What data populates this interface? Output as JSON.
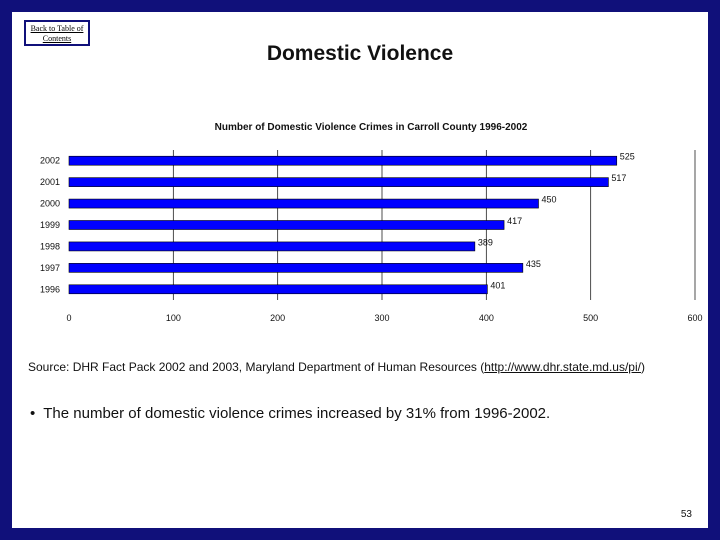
{
  "nav": {
    "back_label": "Back to Table of Contents"
  },
  "page_title": "Domestic Violence",
  "chart_data": {
    "type": "bar",
    "orientation": "horizontal",
    "title": "Number of Domestic Violence Crimes in Carroll County 1996-2002",
    "categories": [
      "2002",
      "2001",
      "2000",
      "1999",
      "1998",
      "1997",
      "1996"
    ],
    "values": [
      525,
      517,
      450,
      417,
      389,
      435,
      401
    ],
    "xlim": [
      0,
      600
    ],
    "xticks": [
      0,
      100,
      200,
      300,
      400,
      500,
      600
    ],
    "grid": "vertical",
    "bar_color": "#0000ff",
    "data_labels": true
  },
  "source": {
    "prefix": "Source: DHR Fact Pack 2002 and 2003, Maryland Department of Human Resources (",
    "link": "http://www.dhr.state.md.us/pi/",
    "suffix": ")"
  },
  "bullets": [
    "The number of domestic violence crimes increased by 31% from 1996-2002."
  ],
  "page_number": "53"
}
